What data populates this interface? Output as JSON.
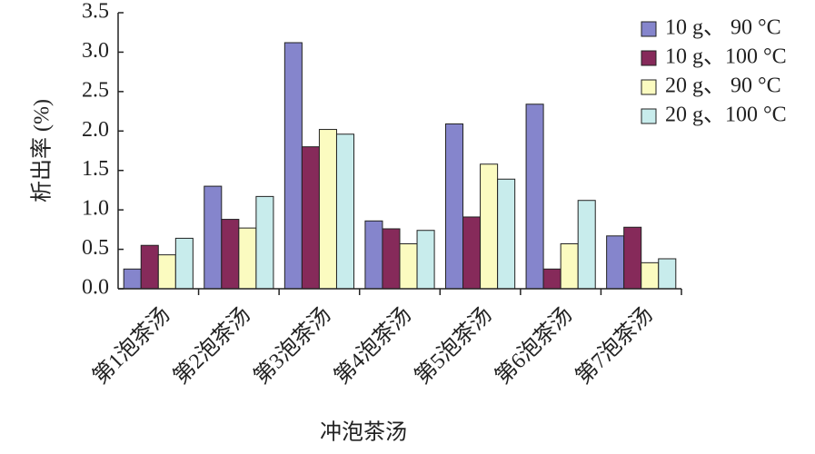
{
  "chart_data": {
    "type": "bar",
    "x_label": "冲泡茶汤",
    "y_label": "析出率 (%)",
    "categories": [
      "第1泡茶汤",
      "第2泡茶汤",
      "第3泡茶汤",
      "第4泡茶汤",
      "第5泡茶汤",
      "第6泡茶汤",
      "第7泡茶汤"
    ],
    "series": [
      {
        "name": "10 g、 90 °C",
        "color": "#8585cc",
        "values": [
          0.25,
          1.3,
          3.12,
          0.86,
          2.09,
          2.34,
          0.67
        ]
      },
      {
        "name": "10 g、100 °C",
        "color": "#862a5a",
        "values": [
          0.55,
          0.88,
          1.8,
          0.76,
          0.91,
          0.25,
          0.78
        ]
      },
      {
        "name": "20 g、 90 °C",
        "color": "#fbfbc0",
        "values": [
          0.43,
          0.77,
          2.02,
          0.57,
          1.58,
          0.57,
          0.33
        ]
      },
      {
        "name": "20 g、100 °C",
        "color": "#c8ecec",
        "values": [
          0.64,
          1.17,
          1.96,
          0.74,
          1.39,
          1.12,
          0.38
        ]
      }
    ],
    "ylim": [
      0,
      3.5
    ],
    "yticks": [
      {
        "value": 0,
        "label": "0.0"
      },
      0.5,
      {
        "value": 1,
        "label": "1.0"
      },
      1.5,
      {
        "value": 2,
        "label": "2.0"
      },
      2.5,
      {
        "value": 3,
        "label": "3.0"
      },
      3.5
    ],
    "legend": "top-right"
  }
}
